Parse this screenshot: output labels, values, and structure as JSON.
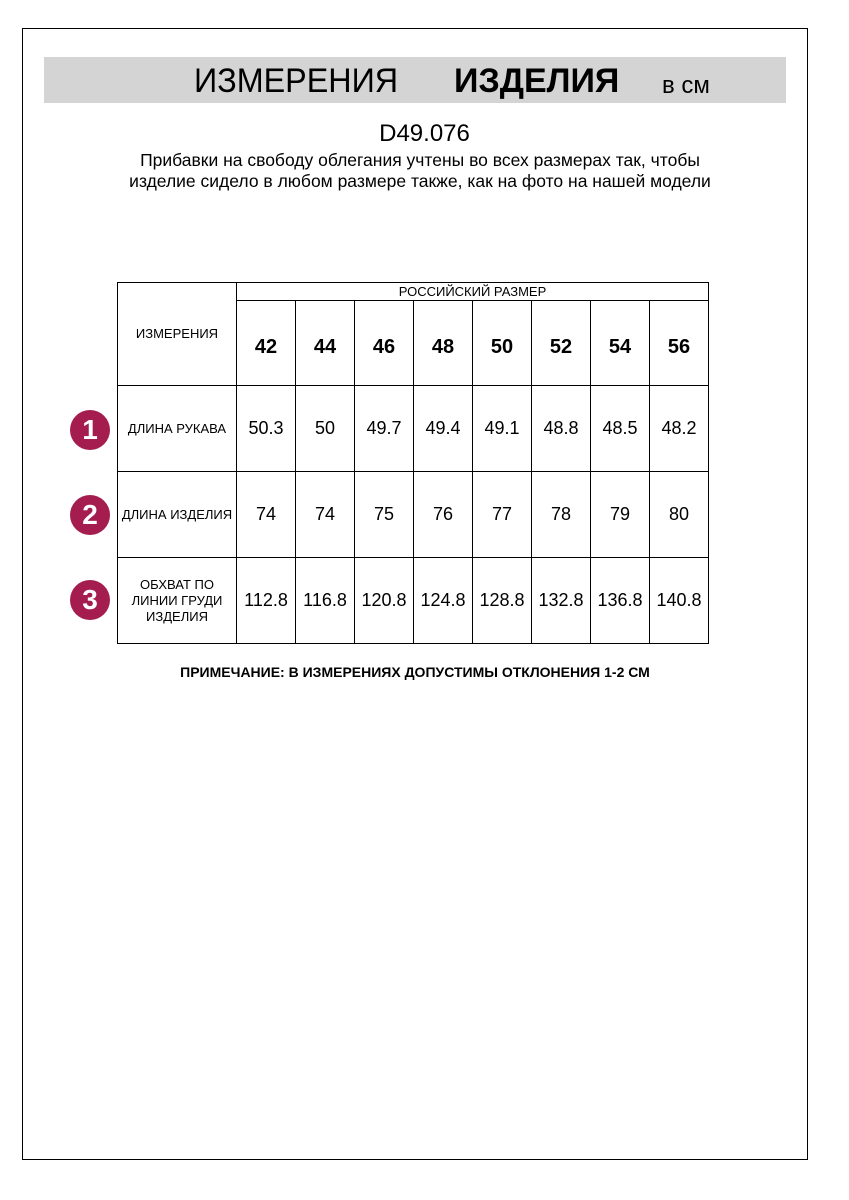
{
  "header": {
    "title_part1": "ИЗМЕРЕНИЯ",
    "title_part2": "ИЗДЕЛИЯ",
    "unit": "в см"
  },
  "article": "D49.076",
  "description": "Прибавки на свободу облегания учтены во всех размерах так, чтобы изделие сидело в любом размере также, как на фото на нашей модели",
  "table": {
    "corner_label": "ИЗМЕРЕНИЯ",
    "group_header": "РОССИЙСКИЙ РАЗМЕР",
    "sizes": [
      "42",
      "44",
      "46",
      "48",
      "50",
      "52",
      "54",
      "56"
    ],
    "rows": [
      {
        "number": "1",
        "label": "ДЛИНА РУКАВА",
        "values": [
          "50.3",
          "50",
          "49.7",
          "49.4",
          "49.1",
          "48.8",
          "48.5",
          "48.2"
        ]
      },
      {
        "number": "2",
        "label": "ДЛИНА ИЗДЕЛИЯ",
        "values": [
          "74",
          "74",
          "75",
          "76",
          "77",
          "78",
          "79",
          "80"
        ]
      },
      {
        "number": "3",
        "label": "ОБХВАТ ПО ЛИНИИ ГРУДИ ИЗДЕЛИЯ",
        "values": [
          "112.8",
          "116.8",
          "120.8",
          "124.8",
          "128.8",
          "132.8",
          "136.8",
          "140.8"
        ]
      }
    ]
  },
  "note": "ПРИМЕЧАНИЕ: В ИЗМЕРЕНИЯХ ДОПУСТИМЫ ОТКЛОНЕНИЯ 1-2 СМ",
  "colors": {
    "badge": "#a51c4f",
    "banner": "#d4d4d4"
  }
}
